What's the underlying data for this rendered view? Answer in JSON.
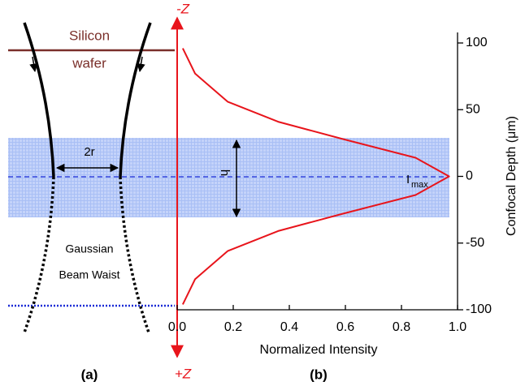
{
  "chart_data": {
    "type": "line",
    "xlabel": "Normalized Intensity",
    "ylabel": "Confocal Depth (μm)",
    "x": [
      0.02,
      0.064,
      0.18,
      0.36,
      0.59,
      0.85,
      0.97,
      0.85,
      0.59,
      0.36,
      0.18,
      0.064,
      0.02
    ],
    "series": [
      {
        "color": "#e8141b",
        "values": [
          96,
          77,
          56,
          41,
          28,
          14,
          0,
          -14,
          -28,
          -41,
          -56,
          -77,
          -96
        ]
      }
    ],
    "xlim": [
      0,
      1
    ],
    "ylim": [
      -100,
      100
    ],
    "xticks": [
      {
        "value": 0,
        "label": "0.0"
      },
      0.2,
      0.4,
      0.6,
      0.8,
      {
        "value": 1,
        "label": "1.0"
      }
    ],
    "yticks": [
      100,
      50,
      0,
      -50,
      -100
    ],
    "annotations": {
      "silicon": "Silicon",
      "wafer": "wafer",
      "radius": "2r",
      "height": "h",
      "imax_main": "I",
      "imax_sub": "max",
      "gaussian": "Gaussian",
      "beam_waist": "Beam Waist",
      "minus_z": "-Z",
      "plus_z": "+Z",
      "panel_a": "(a)",
      "panel_b": "(b)"
    }
  }
}
